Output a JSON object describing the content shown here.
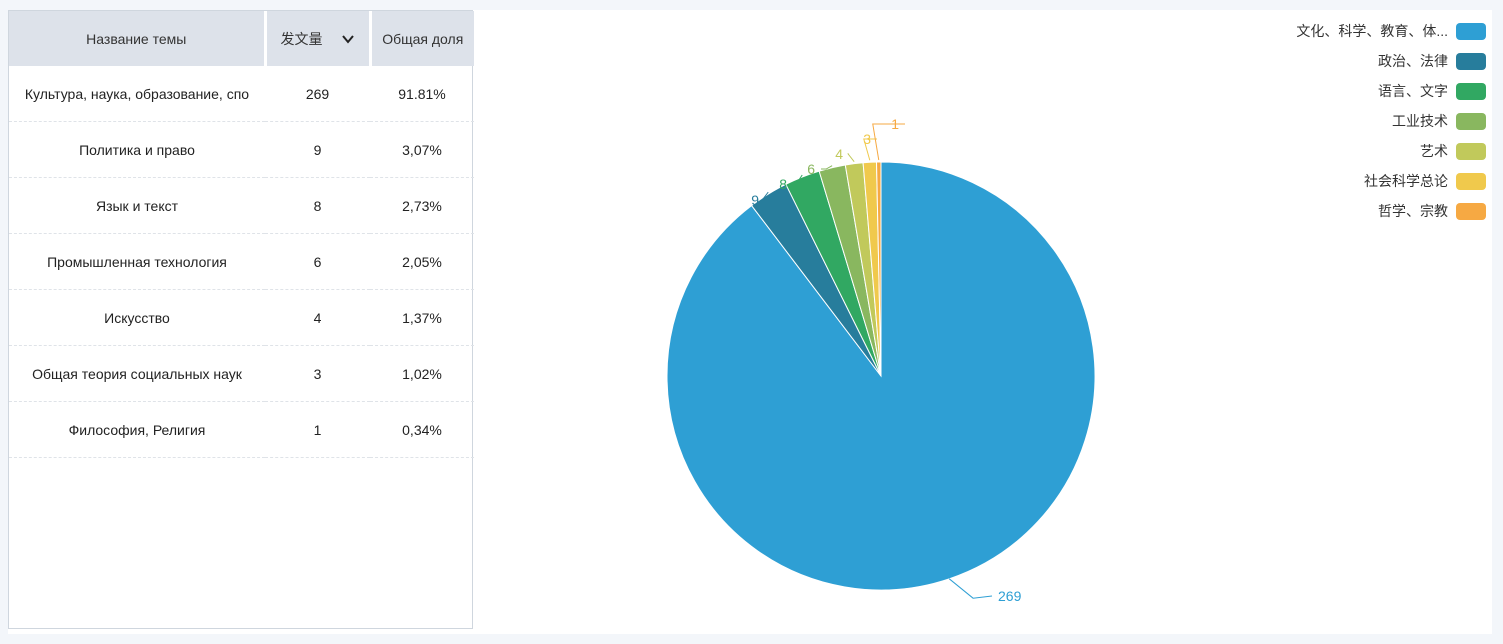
{
  "table": {
    "headers": [
      "Название темы",
      "发文量",
      "Общая доля"
    ],
    "rows": [
      {
        "name": "Культура, наука, образование, спо",
        "count": "269",
        "share": "91.81%"
      },
      {
        "name": "Политика и право",
        "count": "9",
        "share": "3,07%"
      },
      {
        "name": "Язык и текст",
        "count": "8",
        "share": "2,73%"
      },
      {
        "name": "Промышленная технология",
        "count": "6",
        "share": "2,05%"
      },
      {
        "name": "Искусство",
        "count": "4",
        "share": "1,37%"
      },
      {
        "name": "Общая теория социальных наук",
        "count": "3",
        "share": "1,02%"
      },
      {
        "name": "Философия, Религия",
        "count": "1",
        "share": "0,34%"
      }
    ]
  },
  "icons": {
    "sort": "chevron-down-icon"
  },
  "chart_data": {
    "type": "pie",
    "title": "",
    "legend_position": "top-right",
    "slices": [
      {
        "label": "文化、科学、教育、体...",
        "value": 269,
        "color": "#2e9fd4"
      },
      {
        "label": "政治、法律",
        "value": 9,
        "color": "#277d9c"
      },
      {
        "label": "语言、文字",
        "value": 8,
        "color": "#31a862"
      },
      {
        "label": "工业技术",
        "value": 6,
        "color": "#89b75f"
      },
      {
        "label": "艺术",
        "value": 4,
        "color": "#c1c95b"
      },
      {
        "label": "社会科学总论",
        "value": 3,
        "color": "#f0c94c"
      },
      {
        "label": "哲学、宗教",
        "value": 1,
        "color": "#f6a943"
      }
    ]
  }
}
